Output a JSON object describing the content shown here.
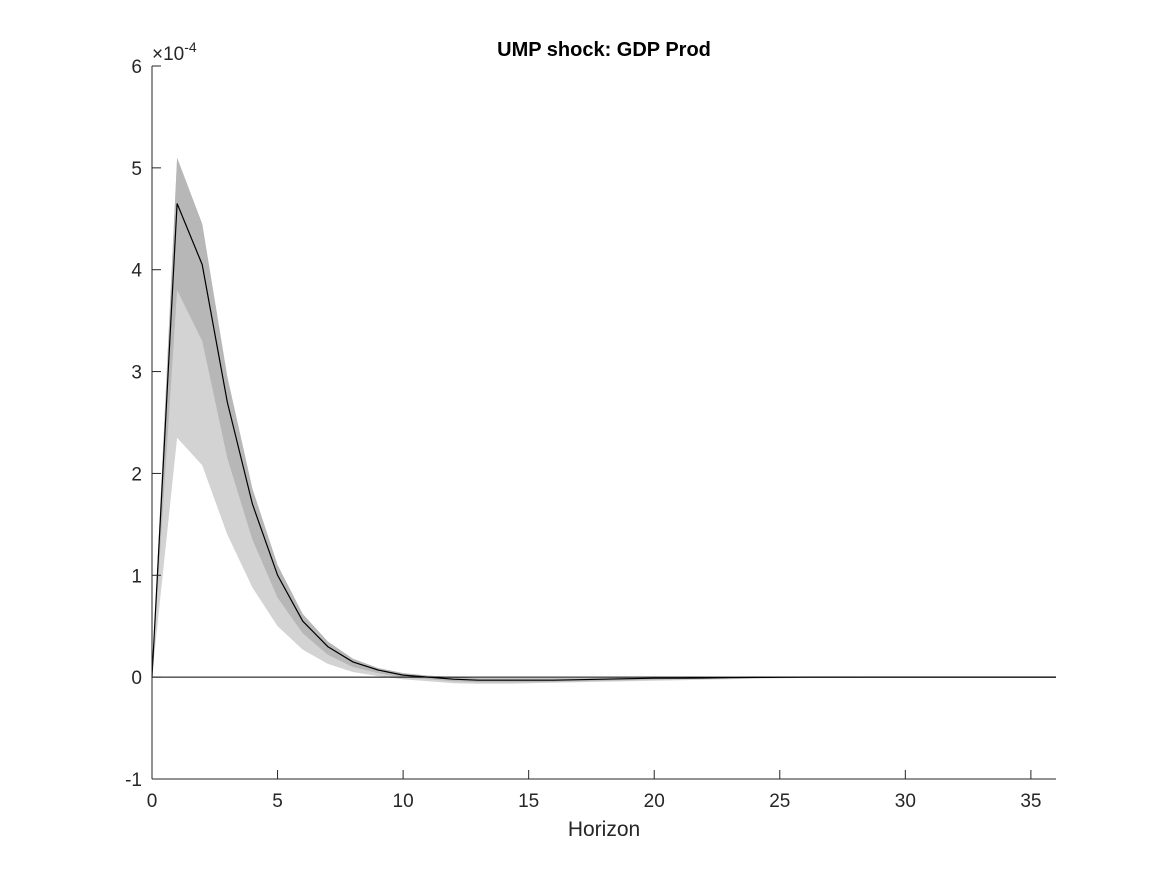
{
  "chart_data": {
    "type": "area",
    "title": "UMP shock: GDP Prod",
    "xlabel": "Horizon",
    "ylabel": "",
    "xlim": [
      0,
      36
    ],
    "ylim": [
      -1,
      6
    ],
    "y_exponent_base": "×10",
    "y_exponent_power": "-4",
    "x_ticks": [
      0,
      5,
      10,
      15,
      20,
      25,
      30,
      35
    ],
    "y_ticks": [
      -1,
      0,
      1,
      2,
      3,
      4,
      5,
      6
    ],
    "grid": false,
    "legend": "none",
    "colors": {
      "inner_band": "#b7b7b7",
      "outer_band": "#d3d3d3",
      "median_line": "#000000",
      "zero_line": "#000000",
      "axis": "#262626"
    },
    "x": [
      0,
      1,
      2,
      3,
      4,
      5,
      6,
      7,
      8,
      9,
      10,
      11,
      12,
      13,
      14,
      15,
      16,
      17,
      18,
      19,
      20,
      21,
      22,
      23,
      24,
      25,
      26,
      27,
      28,
      29,
      30,
      31,
      32,
      33,
      34,
      35,
      36
    ],
    "series": [
      {
        "role": "median",
        "values": [
          0,
          4.65,
          4.05,
          2.7,
          1.7,
          1.0,
          0.55,
          0.3,
          0.15,
          0.07,
          0.02,
          0.0,
          -0.02,
          -0.03,
          -0.03,
          -0.03,
          -0.03,
          -0.025,
          -0.02,
          -0.015,
          -0.01,
          -0.01,
          -0.008,
          -0.005,
          -0.003,
          -0.002,
          -0.001,
          0,
          0,
          0,
          0,
          0,
          0,
          0,
          0,
          0,
          0
        ]
      },
      {
        "role": "inner_band_upper",
        "values": [
          0,
          5.1,
          4.45,
          2.95,
          1.85,
          1.1,
          0.62,
          0.35,
          0.18,
          0.09,
          0.04,
          0.015,
          0.0,
          -0.01,
          -0.01,
          -0.01,
          -0.01,
          -0.01,
          -0.008,
          -0.006,
          -0.005,
          -0.004,
          -0.003,
          -0.002,
          -0.001,
          0,
          0,
          0,
          0,
          0,
          0,
          0,
          0,
          0,
          0,
          0,
          0
        ]
      },
      {
        "role": "inner_band_lower",
        "values": [
          0,
          3.8,
          3.3,
          2.15,
          1.35,
          0.78,
          0.43,
          0.22,
          0.1,
          0.04,
          0.0,
          -0.02,
          -0.04,
          -0.05,
          -0.05,
          -0.05,
          -0.045,
          -0.04,
          -0.035,
          -0.03,
          -0.025,
          -0.02,
          -0.015,
          -0.01,
          -0.008,
          -0.005,
          -0.003,
          -0.002,
          -0.001,
          0,
          0,
          0,
          0,
          0,
          0,
          0,
          0
        ]
      },
      {
        "role": "outer_band_lower",
        "values": [
          0,
          2.35,
          2.08,
          1.4,
          0.88,
          0.5,
          0.27,
          0.13,
          0.05,
          0.01,
          -0.02,
          -0.04,
          -0.06,
          -0.065,
          -0.065,
          -0.06,
          -0.055,
          -0.05,
          -0.045,
          -0.04,
          -0.035,
          -0.03,
          -0.025,
          -0.02,
          -0.015,
          -0.01,
          -0.008,
          -0.006,
          -0.004,
          -0.002,
          -0.001,
          0,
          0,
          0,
          0,
          0,
          0
        ]
      }
    ]
  }
}
